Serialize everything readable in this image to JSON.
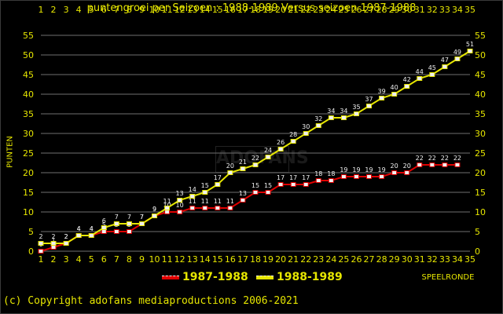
{
  "chart_data": {
    "type": "line",
    "title": "puntengroei per Seizoen : 1988-1989 Versus seizoen 1987-1988",
    "ylabel": "PUNTEN",
    "xlabel": "SPEELRONDE",
    "x": [
      1,
      2,
      3,
      4,
      5,
      6,
      7,
      8,
      9,
      10,
      11,
      12,
      13,
      14,
      15,
      16,
      17,
      18,
      19,
      20,
      21,
      22,
      23,
      24,
      25,
      26,
      27,
      28,
      29,
      30,
      31,
      32,
      33,
      34,
      35
    ],
    "xlim": [
      1,
      35
    ],
    "ylim": [
      0,
      55
    ],
    "yticks": [
      0,
      5,
      10,
      15,
      20,
      25,
      30,
      35,
      40,
      45,
      50,
      55
    ],
    "grid": true,
    "legend_position": "bottom",
    "series": [
      {
        "name": "1987-1988",
        "color": "#e00000",
        "values": [
          0,
          1,
          2,
          4,
          4,
          5,
          5,
          5,
          7,
          9,
          10,
          10,
          11,
          11,
          11,
          11,
          13,
          15,
          15,
          17,
          17,
          17,
          18,
          18,
          19,
          19,
          19,
          19,
          20,
          20,
          22,
          22,
          22,
          22,
          null
        ]
      },
      {
        "name": "1988-1989",
        "color": "#e6e600",
        "values": [
          2,
          2,
          2,
          4,
          4,
          6,
          7,
          7,
          7,
          9,
          11,
          13,
          14,
          15,
          17,
          20,
          21,
          22,
          24,
          26,
          28,
          30,
          32,
          34,
          34,
          35,
          37,
          39,
          40,
          42,
          44,
          45,
          47,
          49,
          51
        ]
      }
    ],
    "point_label_colors": {
      "1987-1988": "#f0f0f0",
      "1988-1989": "#f0f0f0"
    }
  },
  "copyright": "(c) Copyright adofans mediaproductions 2006-2021",
  "watermark": "ADOFANS",
  "colors": {
    "background": "#000000",
    "grid": "#707070",
    "axis_text": "#e6e600",
    "marker_fill": "#f0f0f0",
    "value_label": "#f0f0f0"
  }
}
